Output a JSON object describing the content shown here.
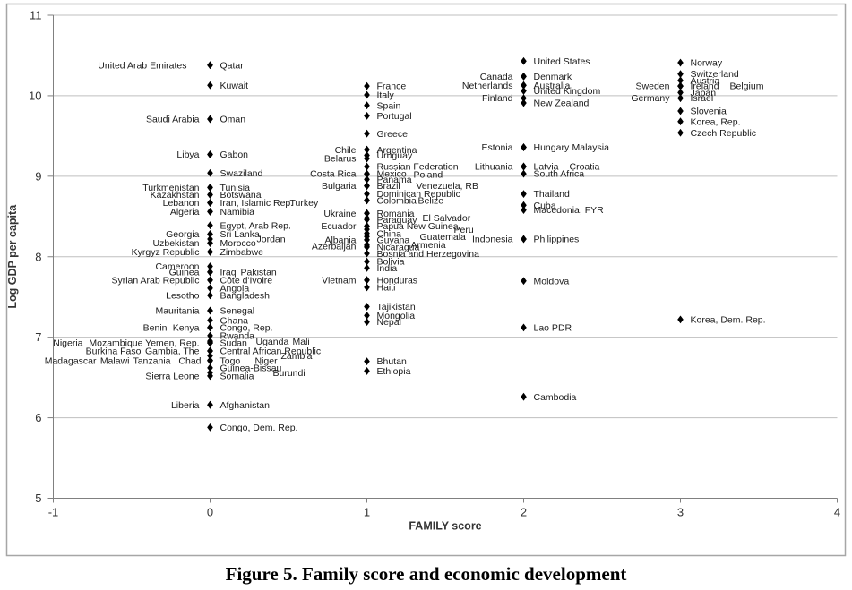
{
  "figure": {
    "caption": "Figure 5. Family score and economic development"
  },
  "chart_data": {
    "type": "scatter",
    "title": "",
    "xlabel": "FAMILY score",
    "ylabel": "Log GDP per capita",
    "xlim": [
      -1,
      4
    ],
    "ylim": [
      5,
      11
    ],
    "x_ticks": [
      "-1",
      "0",
      "1",
      "2",
      "3",
      "4"
    ],
    "y_ticks": [
      "5",
      "6",
      "7",
      "8",
      "9",
      "10",
      "11"
    ],
    "grid": "horizontal",
    "legend": "none",
    "marker": "diamond",
    "colors": {
      "marker": "#000000",
      "label": "#1a1a1a",
      "gridline": "#bfbfbf",
      "axis": "#808080",
      "tick_text": "#333333",
      "frame": "#a6a6a6",
      "background": "#ffffff"
    },
    "points": [
      {
        "name": "United Arab Emirates",
        "x": 0,
        "y": 10.38,
        "side": "left",
        "dx": -14
      },
      {
        "name": "Qatar",
        "x": 0,
        "y": 10.38,
        "side": "right"
      },
      {
        "name": "Kuwait",
        "x": 0,
        "y": 10.13,
        "side": "right"
      },
      {
        "name": "Saudi Arabia",
        "x": 0,
        "y": 9.71,
        "side": "left"
      },
      {
        "name": "Oman",
        "x": 0,
        "y": 9.71,
        "side": "right"
      },
      {
        "name": "Libya",
        "x": 0,
        "y": 9.27,
        "side": "left"
      },
      {
        "name": "Gabon",
        "x": 0,
        "y": 9.27,
        "side": "right"
      },
      {
        "name": "Swaziland",
        "x": 0,
        "y": 9.04,
        "side": "right"
      },
      {
        "name": "Turkmenistan",
        "x": 0,
        "y": 8.86,
        "side": "left"
      },
      {
        "name": "Tunisia",
        "x": 0,
        "y": 8.86,
        "side": "right"
      },
      {
        "name": "Kazakhstan",
        "x": 0,
        "y": 8.77,
        "side": "left"
      },
      {
        "name": "Botswana",
        "x": 0,
        "y": 8.77,
        "side": "right"
      },
      {
        "name": "Lebanon",
        "x": 0,
        "y": 8.67,
        "side": "left"
      },
      {
        "name": "Iran, Islamic Rep.",
        "x": 0,
        "y": 8.67,
        "side": "right"
      },
      {
        "name": "Turkey",
        "x": 0,
        "y": 8.67,
        "side": "right",
        "dx": 78
      },
      {
        "name": "Algeria",
        "x": 0,
        "y": 8.56,
        "side": "left"
      },
      {
        "name": "Namibia",
        "x": 0,
        "y": 8.56,
        "side": "right"
      },
      {
        "name": "Egypt, Arab Rep.",
        "x": 0,
        "y": 8.39,
        "side": "right"
      },
      {
        "name": "Georgia",
        "x": 0,
        "y": 8.28,
        "side": "left"
      },
      {
        "name": "Sri Lanka",
        "x": 0,
        "y": 8.28,
        "side": "right"
      },
      {
        "name": "Uzbekistan",
        "x": 0,
        "y": 8.17,
        "side": "left"
      },
      {
        "name": "Morocco",
        "x": 0,
        "y": 8.17,
        "side": "right"
      },
      {
        "name": "Jordan",
        "x": 0,
        "y": 8.22,
        "side": "right",
        "dx": 41
      },
      {
        "name": "Kyrgyz Republic",
        "x": 0,
        "y": 8.06,
        "side": "left"
      },
      {
        "name": "Zimbabwe",
        "x": 0,
        "y": 8.06,
        "side": "right"
      },
      {
        "name": "Cameroon",
        "x": 0,
        "y": 7.88,
        "side": "left"
      },
      {
        "name": "Guinea",
        "x": 0,
        "y": 7.81,
        "side": "left"
      },
      {
        "name": "Iraq",
        "x": 0,
        "y": 7.81,
        "side": "right"
      },
      {
        "name": "Pakistan",
        "x": 0,
        "y": 7.81,
        "side": "right",
        "dx": 23
      },
      {
        "name": "Syrian Arab Republic",
        "x": 0,
        "y": 7.71,
        "side": "left"
      },
      {
        "name": "Côte d'Ivoire",
        "x": 0,
        "y": 7.71,
        "side": "right"
      },
      {
        "name": "Angola",
        "x": 0,
        "y": 7.61,
        "side": "right"
      },
      {
        "name": "Lesotho",
        "x": 0,
        "y": 7.52,
        "side": "left"
      },
      {
        "name": "Bangladesh",
        "x": 0,
        "y": 7.52,
        "side": "right"
      },
      {
        "name": "Mauritania",
        "x": 0,
        "y": 7.33,
        "side": "left"
      },
      {
        "name": "Senegal",
        "x": 0,
        "y": 7.33,
        "side": "right"
      },
      {
        "name": "Ghana",
        "x": 0,
        "y": 7.21,
        "side": "right"
      },
      {
        "name": "Benin",
        "x": 0,
        "y": 7.12,
        "side": "left",
        "dx": -36
      },
      {
        "name": "Kenya",
        "x": 0,
        "y": 7.12,
        "side": "left"
      },
      {
        "name": "Congo, Rep.",
        "x": 0,
        "y": 7.12,
        "side": "right"
      },
      {
        "name": "Rwanda",
        "x": 0,
        "y": 7.02,
        "side": "right"
      },
      {
        "name": "Nigeria",
        "x": 0,
        "y": 6.93,
        "side": "left",
        "dx": -130
      },
      {
        "name": "Mozambique",
        "x": 0,
        "y": 6.93,
        "side": "left",
        "dx": -63
      },
      {
        "name": "Yemen, Rep.",
        "x": 0,
        "y": 6.93,
        "side": "left"
      },
      {
        "name": "Sudan",
        "x": 0,
        "y": 6.93,
        "side": "right"
      },
      {
        "name": "Uganda",
        "x": 0,
        "y": 6.95,
        "side": "right",
        "dx": 40
      },
      {
        "name": "Mali",
        "x": 0,
        "y": 6.95,
        "side": "right",
        "dx": 81
      },
      {
        "name": "Burkina Faso",
        "x": 0,
        "y": 6.83,
        "side": "left",
        "dx": -65
      },
      {
        "name": "Gambia, The",
        "x": 0,
        "y": 6.83,
        "side": "left"
      },
      {
        "name": "Central African Republic",
        "x": 0,
        "y": 6.83,
        "side": "right"
      },
      {
        "name": "Madagascar",
        "x": 0,
        "y": 6.71,
        "side": "left",
        "dx": -115
      },
      {
        "name": "Malawi",
        "x": 0,
        "y": 6.71,
        "side": "left",
        "dx": -78
      },
      {
        "name": "Tanzania",
        "x": 0,
        "y": 6.71,
        "side": "left",
        "dx": -32
      },
      {
        "name": "Chad",
        "x": 0,
        "y": 6.71,
        "side": "left",
        "dx": 2
      },
      {
        "name": "Togo",
        "x": 0,
        "y": 6.71,
        "side": "right"
      },
      {
        "name": "Niger",
        "x": 0,
        "y": 6.71,
        "side": "right",
        "dx": 39
      },
      {
        "name": "Zambia",
        "x": 0,
        "y": 6.77,
        "side": "right",
        "dx": 68
      },
      {
        "name": "Guinea-Bissau",
        "x": 0,
        "y": 6.62,
        "side": "right"
      },
      {
        "name": "Sierra Leone",
        "x": 0,
        "y": 6.52,
        "side": "left"
      },
      {
        "name": "Somalia",
        "x": 0,
        "y": 6.52,
        "side": "right"
      },
      {
        "name": "Burundi",
        "x": 0,
        "y": 6.56,
        "side": "right",
        "dx": 59
      },
      {
        "name": "Liberia",
        "x": 0,
        "y": 6.16,
        "side": "left"
      },
      {
        "name": "Afghanistan",
        "x": 0,
        "y": 6.16,
        "side": "right"
      },
      {
        "name": "Congo, Dem. Rep.",
        "x": 0,
        "y": 5.88,
        "side": "right"
      },
      {
        "name": "France",
        "x": 1,
        "y": 10.12,
        "side": "right"
      },
      {
        "name": "Italy",
        "x": 1,
        "y": 10.01,
        "side": "right"
      },
      {
        "name": "Spain",
        "x": 1,
        "y": 9.88,
        "side": "right"
      },
      {
        "name": "Portugal",
        "x": 1,
        "y": 9.75,
        "side": "right"
      },
      {
        "name": "Greece",
        "x": 1,
        "y": 9.53,
        "side": "right"
      },
      {
        "name": "Chile",
        "x": 1,
        "y": 9.33,
        "side": "left"
      },
      {
        "name": "Argentina",
        "x": 1,
        "y": 9.33,
        "side": "right"
      },
      {
        "name": "Uruguay",
        "x": 1,
        "y": 9.26,
        "side": "right"
      },
      {
        "name": "Belarus",
        "x": 1,
        "y": 9.22,
        "side": "left"
      },
      {
        "name": "Russian Federation",
        "x": 1,
        "y": 9.12,
        "side": "right"
      },
      {
        "name": "Costa Rica",
        "x": 1,
        "y": 9.03,
        "side": "left"
      },
      {
        "name": "Mexico",
        "x": 1,
        "y": 9.03,
        "side": "right"
      },
      {
        "name": "Poland",
        "x": 1,
        "y": 9.02,
        "side": "right",
        "dx": 41
      },
      {
        "name": "Panama",
        "x": 1,
        "y": 8.96,
        "side": "right"
      },
      {
        "name": "Bulgaria",
        "x": 1,
        "y": 8.88,
        "side": "left"
      },
      {
        "name": "Brazil",
        "x": 1,
        "y": 8.88,
        "side": "right"
      },
      {
        "name": "Venezuela, RB",
        "x": 1,
        "y": 8.88,
        "side": "right",
        "dx": 44
      },
      {
        "name": "Dominican Republic",
        "x": 1,
        "y": 8.78,
        "side": "right"
      },
      {
        "name": "Colombia",
        "x": 1,
        "y": 8.7,
        "side": "right"
      },
      {
        "name": "Belize",
        "x": 1,
        "y": 8.7,
        "side": "right",
        "dx": 46
      },
      {
        "name": "Ukraine",
        "x": 1,
        "y": 8.54,
        "side": "left"
      },
      {
        "name": "Romania",
        "x": 1,
        "y": 8.54,
        "side": "right"
      },
      {
        "name": "Paraguay",
        "x": 1,
        "y": 8.46,
        "side": "right"
      },
      {
        "name": "El Salvador",
        "x": 1,
        "y": 8.48,
        "side": "right",
        "dx": 51
      },
      {
        "name": "Ecuador",
        "x": 1,
        "y": 8.38,
        "side": "left"
      },
      {
        "name": "Papua New Guinea",
        "x": 1,
        "y": 8.38,
        "side": "right"
      },
      {
        "name": "Peru",
        "x": 1,
        "y": 8.34,
        "side": "right",
        "dx": 86
      },
      {
        "name": "China",
        "x": 1,
        "y": 8.29,
        "side": "right"
      },
      {
        "name": "Guatemala",
        "x": 1,
        "y": 8.25,
        "side": "right",
        "dx": 48
      },
      {
        "name": "Albania",
        "x": 1,
        "y": 8.21,
        "side": "left"
      },
      {
        "name": "Guyana",
        "x": 1,
        "y": 8.21,
        "side": "right"
      },
      {
        "name": "Azerbaijan",
        "x": 1,
        "y": 8.13,
        "side": "left"
      },
      {
        "name": "Nicaragua",
        "x": 1,
        "y": 8.12,
        "side": "right"
      },
      {
        "name": "Armenia",
        "x": 1,
        "y": 8.15,
        "side": "right",
        "dx": 38
      },
      {
        "name": "Bosnia and Herzegovina",
        "x": 1,
        "y": 8.04,
        "side": "right"
      },
      {
        "name": "Bolivia",
        "x": 1,
        "y": 7.94,
        "side": "right"
      },
      {
        "name": "India",
        "x": 1,
        "y": 7.86,
        "side": "right"
      },
      {
        "name": "Vietnam",
        "x": 1,
        "y": 7.71,
        "side": "left"
      },
      {
        "name": "Honduras",
        "x": 1,
        "y": 7.71,
        "side": "right"
      },
      {
        "name": "Haiti",
        "x": 1,
        "y": 7.62,
        "side": "right"
      },
      {
        "name": "Tajikistan",
        "x": 1,
        "y": 7.38,
        "side": "right"
      },
      {
        "name": "Mongolia",
        "x": 1,
        "y": 7.27,
        "side": "right"
      },
      {
        "name": "Nepal",
        "x": 1,
        "y": 7.19,
        "side": "right"
      },
      {
        "name": "Bhutan",
        "x": 1,
        "y": 6.7,
        "side": "right"
      },
      {
        "name": "Ethiopia",
        "x": 1,
        "y": 6.58,
        "side": "right"
      },
      {
        "name": "United States",
        "x": 2,
        "y": 10.43,
        "side": "right"
      },
      {
        "name": "Canada",
        "x": 2,
        "y": 10.24,
        "side": "left"
      },
      {
        "name": "Denmark",
        "x": 2,
        "y": 10.24,
        "side": "right"
      },
      {
        "name": "Netherlands",
        "x": 2,
        "y": 10.13,
        "side": "left"
      },
      {
        "name": "Australia",
        "x": 2,
        "y": 10.13,
        "side": "right"
      },
      {
        "name": "United Kingdom",
        "x": 2,
        "y": 10.06,
        "side": "right"
      },
      {
        "name": "Finland",
        "x": 2,
        "y": 9.97,
        "side": "left"
      },
      {
        "name": "New Zealand",
        "x": 2,
        "y": 9.91,
        "side": "right"
      },
      {
        "name": "Estonia",
        "x": 2,
        "y": 9.36,
        "side": "left"
      },
      {
        "name": "Hungary",
        "x": 2,
        "y": 9.36,
        "side": "right"
      },
      {
        "name": "Malaysia",
        "x": 2,
        "y": 9.36,
        "side": "right",
        "dx": 43
      },
      {
        "name": "Lithuania",
        "x": 2,
        "y": 9.12,
        "side": "left"
      },
      {
        "name": "Latvia",
        "x": 2,
        "y": 9.12,
        "side": "right"
      },
      {
        "name": "Croatia",
        "x": 2,
        "y": 9.12,
        "side": "right",
        "dx": 40
      },
      {
        "name": "South Africa",
        "x": 2,
        "y": 9.03,
        "side": "right"
      },
      {
        "name": "Thailand",
        "x": 2,
        "y": 8.78,
        "side": "right"
      },
      {
        "name": "Cuba",
        "x": 2,
        "y": 8.64,
        "side": "right"
      },
      {
        "name": "Macedonia, FYR",
        "x": 2,
        "y": 8.58,
        "side": "right"
      },
      {
        "name": "Indonesia",
        "x": 2,
        "y": 8.22,
        "side": "left"
      },
      {
        "name": "Philippines",
        "x": 2,
        "y": 8.22,
        "side": "right"
      },
      {
        "name": "Moldova",
        "x": 2,
        "y": 7.7,
        "side": "right"
      },
      {
        "name": "Lao PDR",
        "x": 2,
        "y": 7.12,
        "side": "right"
      },
      {
        "name": "Cambodia",
        "x": 2,
        "y": 6.26,
        "side": "right"
      },
      {
        "name": "Norway",
        "x": 3,
        "y": 10.41,
        "side": "right"
      },
      {
        "name": "Switzerland",
        "x": 3,
        "y": 10.27,
        "side": "right"
      },
      {
        "name": "Austria",
        "x": 3,
        "y": 10.19,
        "side": "right"
      },
      {
        "name": "Sweden",
        "x": 3,
        "y": 10.12,
        "side": "left"
      },
      {
        "name": "Ireland",
        "x": 3,
        "y": 10.12,
        "side": "right"
      },
      {
        "name": "Belgium",
        "x": 3,
        "y": 10.12,
        "side": "right",
        "dx": 44
      },
      {
        "name": "Japan",
        "x": 3,
        "y": 10.04,
        "side": "right"
      },
      {
        "name": "Germany",
        "x": 3,
        "y": 9.97,
        "side": "left"
      },
      {
        "name": "Israel",
        "x": 3,
        "y": 9.97,
        "side": "right"
      },
      {
        "name": "Slovenia",
        "x": 3,
        "y": 9.81,
        "side": "right"
      },
      {
        "name": "Korea, Rep.",
        "x": 3,
        "y": 9.68,
        "side": "right"
      },
      {
        "name": "Czech Republic",
        "x": 3,
        "y": 9.54,
        "side": "right"
      },
      {
        "name": "Korea, Dem. Rep.",
        "x": 3,
        "y": 7.22,
        "side": "right"
      }
    ]
  }
}
